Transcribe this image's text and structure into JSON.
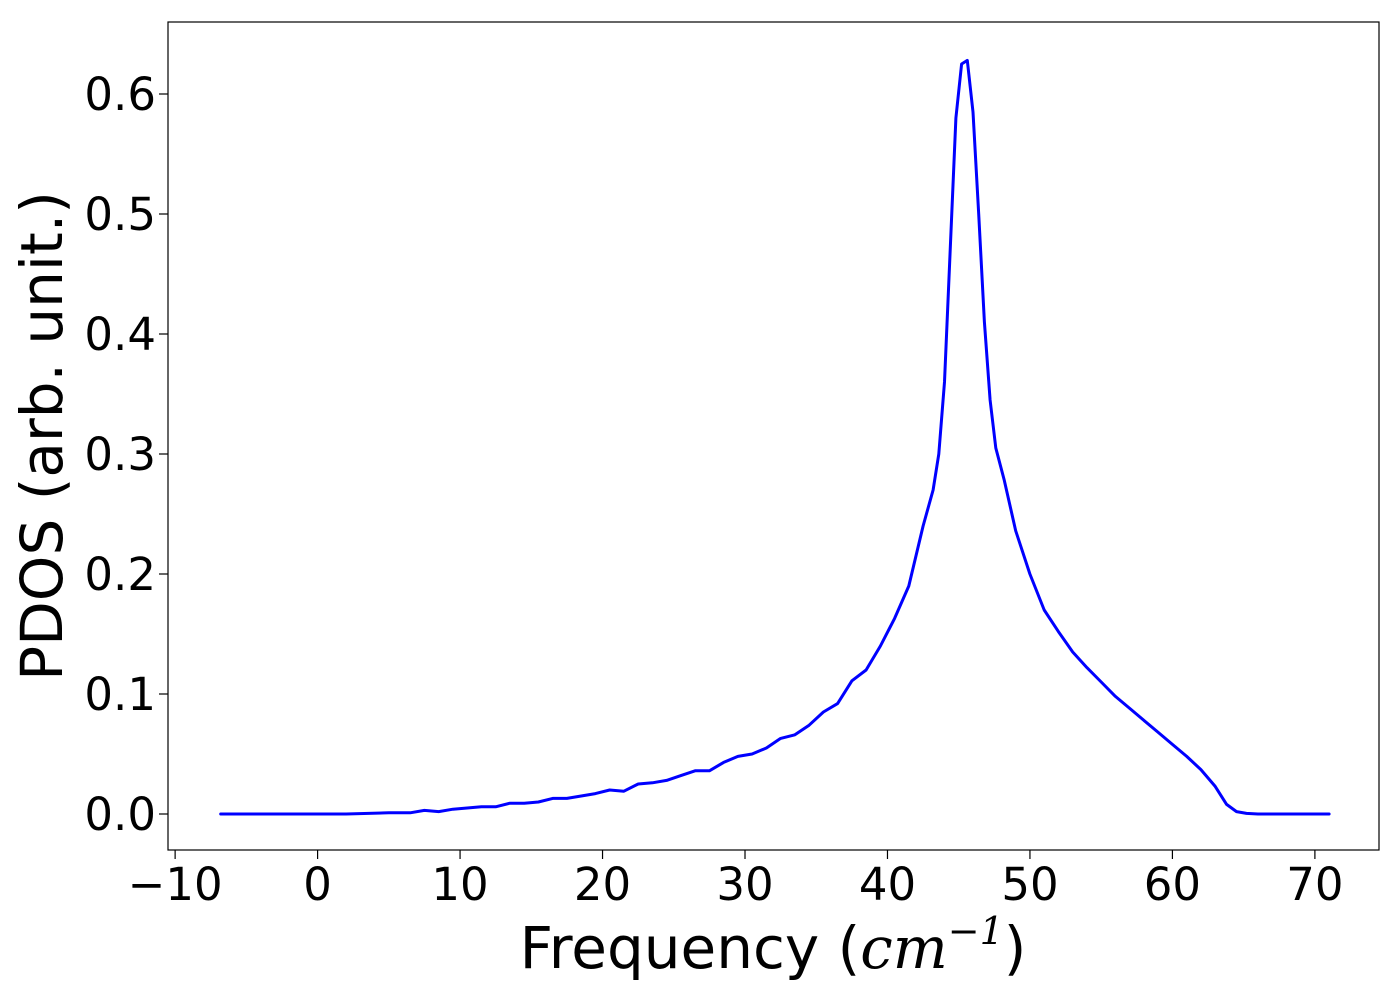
{
  "chart_data": {
    "type": "line",
    "title": "",
    "xlabel": "Frequency (cm⁻¹)",
    "xlabel_prefix": "Frequency (",
    "xlabel_unit": "cm",
    "xlabel_exp": "−1",
    "xlabel_suffix": ")",
    "ylabel": "PDOS (arb. unit.)",
    "xlim": [
      -10.5,
      74.5
    ],
    "ylim": [
      -0.03,
      0.66
    ],
    "xticks": [
      -10,
      0,
      10,
      20,
      30,
      40,
      50,
      60,
      70
    ],
    "xtick_labels": [
      "−10",
      "0",
      "10",
      "20",
      "30",
      "40",
      "50",
      "60",
      "70"
    ],
    "yticks": [
      0.0,
      0.1,
      0.2,
      0.3,
      0.4,
      0.5,
      0.6
    ],
    "ytick_labels": [
      "0.0",
      "0.1",
      "0.2",
      "0.3",
      "0.4",
      "0.5",
      "0.6"
    ],
    "grid": false,
    "legend": "none",
    "series": [
      {
        "color": "#0000ff",
        "x": [
          -6.8,
          -2,
          2,
          5,
          6.5,
          7.5,
          8.5,
          9.5,
          10.5,
          11.5,
          12.5,
          13.5,
          14.5,
          15.5,
          16.5,
          17.5,
          18.5,
          19.5,
          20.5,
          21.5,
          22.5,
          23.5,
          24.5,
          25.5,
          26.5,
          27.5,
          28.5,
          29.5,
          30.5,
          31.5,
          32.5,
          33.5,
          34.5,
          35.5,
          36.5,
          37.5,
          38.5,
          39.5,
          40.5,
          41.5,
          42.5,
          43.2,
          43.6,
          44.0,
          44.4,
          44.8,
          45.2,
          45.6,
          46.0,
          46.4,
          46.8,
          47.2,
          47.6,
          48.2,
          49.0,
          50.0,
          51.0,
          52.0,
          53.0,
          54.0,
          55.0,
          56.0,
          57.0,
          58.0,
          59.0,
          60.0,
          61.0,
          62.0,
          63.0,
          63.8,
          64.5,
          65.2,
          66.0,
          68.0,
          71.0
        ],
        "y": [
          0.0,
          0.0,
          0.0,
          0.001,
          0.001,
          0.003,
          0.002,
          0.004,
          0.005,
          0.006,
          0.006,
          0.009,
          0.009,
          0.01,
          0.013,
          0.013,
          0.015,
          0.017,
          0.02,
          0.019,
          0.025,
          0.026,
          0.028,
          0.032,
          0.036,
          0.036,
          0.043,
          0.048,
          0.05,
          0.055,
          0.063,
          0.066,
          0.074,
          0.085,
          0.092,
          0.111,
          0.12,
          0.14,
          0.163,
          0.19,
          0.24,
          0.27,
          0.3,
          0.36,
          0.47,
          0.58,
          0.625,
          0.628,
          0.585,
          0.5,
          0.41,
          0.345,
          0.305,
          0.278,
          0.236,
          0.2,
          0.17,
          0.152,
          0.135,
          0.122,
          0.11,
          0.098,
          0.088,
          0.078,
          0.068,
          0.058,
          0.048,
          0.037,
          0.023,
          0.008,
          0.002,
          0.0005,
          0.0,
          0.0,
          0.0
        ]
      }
    ]
  }
}
